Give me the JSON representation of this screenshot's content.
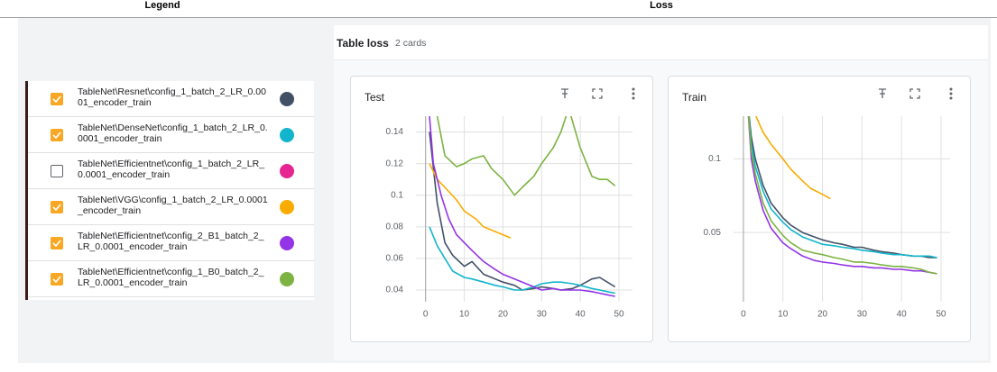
{
  "header": {
    "legend_title": "Legend",
    "main_title": "Loss"
  },
  "legend": {
    "items": [
      {
        "label": "TableNet\\Resnet\\config_1_batch_2_LR_0.0001_encoder_train",
        "checked": true,
        "color": "#425066"
      },
      {
        "label": "TableNet\\DenseNet\\config_1_batch_2_LR_0.0001_encoder_train",
        "checked": true,
        "color": "#12b5cb"
      },
      {
        "label": "TableNet\\Efficientnet\\config_1_batch_2_LR_0.0001_encoder_train",
        "checked": false,
        "color": "#e52592"
      },
      {
        "label": "TableNet\\VGG\\config_1_batch_2_LR_0.0001_encoder_train",
        "checked": true,
        "color": "#f9ab00"
      },
      {
        "label": "TableNet\\Efficientnet\\config_2_B1_batch_2_LR_0.0001_encoder_train",
        "checked": true,
        "color": "#9334e6"
      },
      {
        "label": "TableNet\\Efficientnet\\config_1_B0_batch_2_LR_0.0001_encoder_train",
        "checked": true,
        "color": "#7cb342"
      }
    ]
  },
  "section": {
    "title": "Table loss",
    "subtitle": "2 cards"
  },
  "chart_data": [
    {
      "type": "line",
      "title": "Test",
      "xlim": [
        -2.5,
        53.5
      ],
      "xticks": [
        0,
        10,
        20,
        30,
        40,
        50
      ],
      "ylim": [
        0.0326,
        0.15
      ],
      "yticks": [
        0.04,
        0.06,
        0.08,
        0.1,
        0.12,
        0.14
      ],
      "grid": true,
      "series": [
        {
          "color": "#425066",
          "x": [
            1,
            3,
            5,
            7,
            10,
            12,
            15,
            18,
            20,
            23,
            25,
            28,
            30,
            33,
            35,
            38,
            40,
            43,
            45,
            47,
            49
          ],
          "values": [
            0.14,
            0.095,
            0.07,
            0.062,
            0.055,
            0.058,
            0.05,
            0.047,
            0.045,
            0.043,
            0.04,
            0.041,
            0.042,
            0.041,
            0.04,
            0.041,
            0.043,
            0.047,
            0.048,
            0.045,
            0.042
          ]
        },
        {
          "color": "#12b5cb",
          "x": [
            1,
            3,
            5,
            7,
            10,
            12,
            15,
            18,
            20,
            23,
            25,
            28,
            30,
            33,
            35,
            38,
            40,
            43,
            45,
            47,
            49
          ],
          "values": [
            0.08,
            0.068,
            0.06,
            0.052,
            0.048,
            0.047,
            0.045,
            0.043,
            0.042,
            0.04,
            0.04,
            0.042,
            0.044,
            0.045,
            0.045,
            0.044,
            0.043,
            0.041,
            0.04,
            0.039,
            0.038
          ]
        },
        {
          "color": "#f9ab00",
          "x": [
            1,
            3,
            5,
            8,
            10,
            13,
            15,
            18,
            20,
            22
          ],
          "values": [
            0.12,
            0.11,
            0.105,
            0.097,
            0.09,
            0.085,
            0.08,
            0.077,
            0.075,
            0.073
          ]
        },
        {
          "color": "#9334e6",
          "x": [
            1,
            2,
            4,
            6,
            8,
            10,
            12,
            15,
            18,
            20,
            23,
            25,
            28,
            30,
            33,
            35,
            38,
            40,
            43,
            45,
            47,
            49
          ],
          "values": [
            0.15,
            0.12,
            0.1,
            0.085,
            0.075,
            0.07,
            0.065,
            0.058,
            0.053,
            0.05,
            0.047,
            0.045,
            0.042,
            0.04,
            0.041,
            0.04,
            0.04,
            0.04,
            0.039,
            0.038,
            0.037,
            0.036
          ]
        },
        {
          "color": "#7cb342",
          "x": [
            1,
            3,
            5,
            8,
            10,
            12,
            15,
            17,
            20,
            23,
            25,
            28,
            30,
            33,
            35,
            37,
            40,
            43,
            45,
            47,
            49
          ],
          "values": [
            0.2,
            0.15,
            0.125,
            0.118,
            0.12,
            0.123,
            0.125,
            0.117,
            0.11,
            0.1,
            0.105,
            0.112,
            0.12,
            0.13,
            0.14,
            0.155,
            0.13,
            0.112,
            0.11,
            0.11,
            0.106
          ]
        }
      ]
    },
    {
      "type": "line",
      "title": "Train",
      "xlim": [
        -2.5,
        52.3
      ],
      "xticks": [
        0,
        10,
        20,
        30,
        40,
        50
      ],
      "ylim": [
        0.003,
        0.129
      ],
      "yticks": [
        0.05,
        0.1
      ],
      "grid": true,
      "series": [
        {
          "color": "#425066",
          "x": [
            1,
            2,
            3,
            5,
            7,
            10,
            12,
            15,
            18,
            20,
            23,
            25,
            28,
            30,
            33,
            35,
            38,
            40,
            43,
            45,
            47,
            49
          ],
          "values": [
            0.14,
            0.115,
            0.1,
            0.082,
            0.07,
            0.06,
            0.055,
            0.05,
            0.047,
            0.045,
            0.043,
            0.042,
            0.04,
            0.04,
            0.038,
            0.037,
            0.036,
            0.035,
            0.034,
            0.034,
            0.033,
            0.033
          ]
        },
        {
          "color": "#12b5cb",
          "x": [
            1,
            2,
            3,
            5,
            7,
            10,
            12,
            15,
            18,
            20,
            23,
            25,
            28,
            30,
            33,
            35,
            38,
            40,
            43,
            45,
            47,
            49
          ],
          "values": [
            0.14,
            0.11,
            0.095,
            0.078,
            0.066,
            0.057,
            0.052,
            0.047,
            0.044,
            0.042,
            0.041,
            0.04,
            0.039,
            0.038,
            0.037,
            0.036,
            0.035,
            0.035,
            0.034,
            0.034,
            0.034,
            0.033
          ]
        },
        {
          "color": "#f9ab00",
          "x": [
            2,
            3,
            5,
            7,
            10,
            12,
            15,
            17,
            20,
            22
          ],
          "values": [
            0.14,
            0.13,
            0.118,
            0.11,
            0.1,
            0.093,
            0.085,
            0.08,
            0.076,
            0.073
          ]
        },
        {
          "color": "#9334e6",
          "x": [
            1,
            2,
            3,
            5,
            7,
            10,
            12,
            15,
            18,
            20,
            23,
            25,
            28,
            30,
            33,
            35,
            38,
            40,
            43,
            45,
            47,
            49
          ],
          "values": [
            0.14,
            0.1,
            0.085,
            0.065,
            0.053,
            0.043,
            0.039,
            0.034,
            0.031,
            0.03,
            0.029,
            0.028,
            0.027,
            0.027,
            0.026,
            0.026,
            0.025,
            0.025,
            0.024,
            0.024,
            0.023,
            0.022
          ]
        },
        {
          "color": "#7cb342",
          "x": [
            1,
            2,
            3,
            5,
            7,
            10,
            12,
            15,
            18,
            20,
            23,
            25,
            28,
            30,
            33,
            35,
            38,
            40,
            43,
            45,
            47,
            49
          ],
          "values": [
            0.14,
            0.105,
            0.09,
            0.07,
            0.058,
            0.048,
            0.043,
            0.038,
            0.036,
            0.035,
            0.033,
            0.032,
            0.03,
            0.03,
            0.029,
            0.028,
            0.027,
            0.027,
            0.026,
            0.025,
            0.023,
            0.022
          ]
        }
      ]
    }
  ]
}
